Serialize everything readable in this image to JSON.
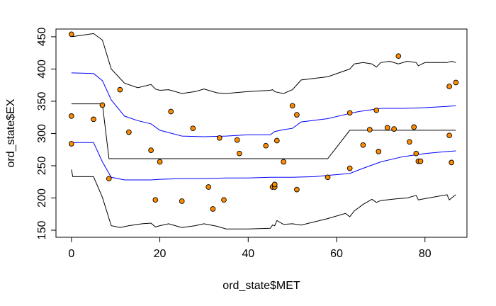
{
  "chart_data": {
    "type": "scatter",
    "xlabel": "ord_state$MET",
    "ylabel": "ord_state$EX",
    "xlim": [
      -3.5,
      89.5
    ],
    "ylim": [
      139,
      462
    ],
    "x_ticks": [
      0,
      20,
      40,
      60,
      80
    ],
    "x_tick_labels": [
      "0",
      "20",
      "40",
      "60",
      "80"
    ],
    "y_ticks": [
      150,
      200,
      250,
      300,
      350,
      400,
      450
    ],
    "y_tick_labels": [
      "150",
      "200",
      "250",
      "300",
      "350",
      "400",
      "450"
    ],
    "grid": false,
    "legend": "none",
    "point_fill": "#FF8C00",
    "point_stroke": "#000000",
    "points": {
      "x": [
        0,
        0,
        0,
        5,
        7,
        8.5,
        11,
        13,
        18,
        19,
        20,
        22.5,
        25,
        27.5,
        31,
        32,
        33.5,
        34.5,
        37.5,
        38,
        44,
        45.5,
        46,
        46,
        46.5,
        48,
        50,
        51,
        51,
        58,
        63,
        63,
        66,
        67.5,
        69,
        69.5,
        71.5,
        73,
        74,
        76.5,
        77.5,
        78,
        78.5,
        79,
        85.5,
        85.5,
        86,
        87
      ],
      "y": [
        454,
        327,
        284,
        322,
        344,
        230,
        368,
        302,
        274,
        197,
        256,
        334,
        195,
        308,
        217,
        183,
        293,
        197,
        290,
        269,
        281,
        217,
        217,
        221,
        289,
        256,
        343,
        329,
        213,
        232,
        332,
        246,
        282,
        306,
        336,
        272,
        309,
        307,
        420,
        287,
        310,
        269,
        257,
        257,
        297,
        373,
        255,
        379
      ]
    },
    "lines": [
      {
        "stroke": "#000000",
        "x": [
          0,
          5,
          7,
          9,
          12,
          15,
          18,
          19,
          20,
          22,
          25,
          28,
          30,
          33,
          35,
          40,
          45,
          45.5,
          46,
          46.5,
          48,
          50,
          52,
          58,
          63,
          64,
          66,
          68,
          69,
          70,
          72,
          74,
          76,
          78,
          78.5,
          80,
          85,
          86,
          87
        ],
        "y": [
          450,
          455,
          445,
          400,
          378,
          371,
          376,
          369,
          367,
          368,
          362,
          365,
          369,
          363,
          362,
          365,
          367,
          368,
          365,
          364,
          362,
          368,
          383,
          388,
          400,
          408,
          410,
          408,
          403,
          410,
          412,
          408,
          412,
          410,
          405,
          410,
          410,
          412,
          410
        ]
      },
      {
        "stroke": "#0000FF",
        "x": [
          0,
          5,
          7,
          9,
          12,
          15,
          18,
          20,
          25,
          30,
          35,
          40,
          45,
          46,
          48,
          50,
          52,
          58,
          63,
          65,
          67,
          70,
          75,
          80,
          85,
          87
        ],
        "y": [
          394,
          393,
          382,
          352,
          327,
          320,
          315,
          305,
          296,
          295,
          296,
          298,
          298,
          303,
          306,
          308,
          318,
          323,
          331,
          334,
          336,
          339,
          339,
          340,
          342,
          343
        ]
      },
      {
        "stroke": "#000000",
        "x": [
          0,
          7,
          8.5,
          58,
          63,
          87
        ],
        "y": [
          346,
          346,
          261,
          261,
          305,
          305
        ]
      },
      {
        "stroke": "#0000FF",
        "x": [
          0,
          5,
          7,
          9,
          12,
          15,
          18,
          20,
          25,
          30,
          35,
          40,
          45,
          46,
          48,
          50,
          55,
          58,
          63,
          66,
          70,
          75,
          80,
          85,
          87
        ],
        "y": [
          286,
          286,
          256,
          232,
          228,
          228,
          228,
          229,
          230,
          230,
          231,
          231,
          232,
          232,
          232,
          232,
          233,
          235,
          238,
          246,
          256,
          264,
          269,
          272,
          273
        ]
      },
      {
        "stroke": "#000000",
        "x": [
          0,
          0.3,
          5,
          7,
          9,
          11,
          13,
          16,
          18,
          19,
          20,
          22,
          25,
          28,
          30,
          33,
          35,
          40,
          45,
          45.5,
          46,
          46.5,
          48,
          50,
          52,
          58,
          62,
          63,
          64,
          66,
          68,
          69,
          70,
          74,
          76,
          78,
          78.5,
          80,
          85,
          85.5,
          86,
          87
        ],
        "y": [
          244,
          233,
          233,
          201,
          157,
          154,
          157,
          160,
          161,
          155,
          157,
          160,
          154,
          157,
          160,
          156,
          152,
          152,
          153,
          158,
          157,
          165,
          159,
          160,
          158,
          168,
          176,
          171,
          180,
          190,
          198,
          193,
          196,
          199,
          200,
          204,
          197,
          199,
          205,
          197,
          200,
          205
        ]
      }
    ]
  }
}
